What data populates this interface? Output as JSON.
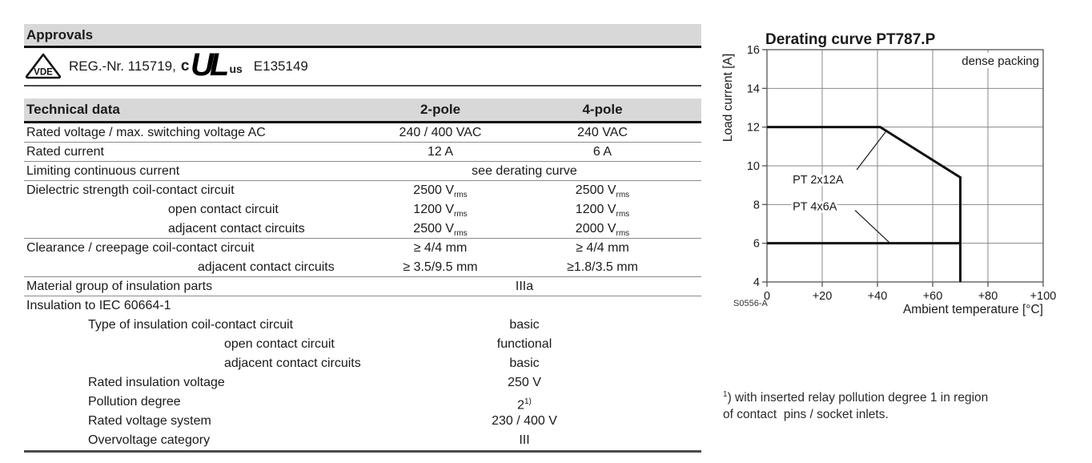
{
  "colors": {
    "bar_gray": "#d8d8d8",
    "text": "#1a1a1a",
    "thin_line": "#8c8c8c",
    "thick_line": "#4a4a4a",
    "grid": "#8a8a8a",
    "curve": "#111111"
  },
  "approvals": {
    "title": "Approvals",
    "vde_label": "VDE",
    "reg_text": "REG.-Nr. 115719,",
    "ul_c": "c",
    "ul_mark": "UL",
    "ul_us": "us",
    "cert_number": "E135149"
  },
  "table": {
    "title": "Technical data",
    "col2_header": "2-pole",
    "col4_header": "4-pole",
    "rows": [
      {
        "label": "Rated voltage / max. switching voltage AC",
        "ind": 0,
        "v2": {
          "t": "240 / 400 VAC"
        },
        "v4": {
          "t": "240 VAC"
        },
        "sep": true
      },
      {
        "label": "Rated current",
        "ind": 0,
        "v2": {
          "t": "12 A"
        },
        "v4": {
          "t": "6 A"
        },
        "sep": true
      },
      {
        "label": "Limiting continuous current",
        "ind": 0,
        "span": {
          "t": "see derating curve"
        },
        "sep": true
      },
      {
        "label": "Dielectric strength coil-contact circuit",
        "ind": 0,
        "v2": {
          "t": "2500 V",
          "sub": "rms"
        },
        "v4": {
          "t": "2500 V",
          "sub": "rms"
        },
        "sep": false
      },
      {
        "label": "open contact circuit",
        "ind": 2,
        "v2": {
          "t": "1200 V",
          "sub": "rms"
        },
        "v4": {
          "t": "1200 V",
          "sub": "rms"
        },
        "sep": false
      },
      {
        "label": "adjacent contact circuits",
        "ind": 2,
        "v2": {
          "t": "2500 V",
          "sub": "rms"
        },
        "v4": {
          "t": "2000 V",
          "sub": "rms"
        },
        "sep": true
      },
      {
        "label": "Clearance / creepage coil-contact circuit",
        "ind": 0,
        "v2": {
          "t": "≥ 4/4 mm"
        },
        "v4": {
          "t": "≥ 4/4 mm"
        },
        "sep": false
      },
      {
        "label": "adjacent contact circuits",
        "ind": 21,
        "v2": {
          "t": "≥ 3.5/9.5 mm"
        },
        "v4": {
          "t": "≥1.8/3.5 mm"
        },
        "sep": true
      },
      {
        "label": "Material group of insulation parts",
        "ind": 0,
        "span": {
          "t": "IIIa"
        },
        "sep": true
      },
      {
        "label": "Insulation to IEC 60664-1",
        "ind": 0,
        "sep": false
      },
      {
        "label": "Type of insulation coil-contact circuit",
        "ind": 1,
        "span": {
          "t": "basic"
        },
        "sep": false
      },
      {
        "label": "open contact circuit",
        "ind": 3,
        "span": {
          "t": "functional"
        },
        "sep": false
      },
      {
        "label": "adjacent contact circuits",
        "ind": 3,
        "span": {
          "t": "basic"
        },
        "sep": false
      },
      {
        "label": "Rated insulation voltage",
        "ind": 1,
        "span": {
          "t": "250 V"
        },
        "sep": false
      },
      {
        "label": "Pollution degree",
        "ind": 1,
        "span": {
          "t": "2",
          "sup": "1)"
        },
        "sep": false
      },
      {
        "label": "Rated voltage system",
        "ind": 1,
        "span": {
          "t": "230 / 400 V"
        },
        "sep": false
      },
      {
        "label": "Overvoltage category",
        "ind": 1,
        "span": {
          "t": "III"
        },
        "sep": false
      }
    ]
  },
  "chart_data": {
    "type": "line",
    "title": "Derating curve PT787.P",
    "xlabel": "Ambient temperature [°C]",
    "ylabel": "Load current [A]",
    "xlim": [
      0,
      100
    ],
    "ylim": [
      4,
      16
    ],
    "x_ticks": {
      "values": [
        0,
        20,
        40,
        60,
        80,
        100
      ],
      "labels": [
        "0",
        "+20",
        "+40",
        "+60",
        "+80",
        "+100"
      ]
    },
    "y_ticks": {
      "values": [
        4,
        6,
        8,
        10,
        12,
        14,
        16
      ],
      "labels": [
        "4",
        "6",
        "8",
        "10",
        "12",
        "14",
        "16"
      ]
    },
    "grid": true,
    "legend_position": "none",
    "corner_note": "dense packing",
    "figure_id": "S0556-A",
    "series": [
      {
        "name": "PT 2x12A",
        "points": [
          [
            0,
            12
          ],
          [
            41,
            12
          ],
          [
            70,
            9.4
          ],
          [
            70,
            4
          ]
        ]
      },
      {
        "name": "PT 4x6A",
        "points": [
          [
            0,
            6
          ],
          [
            70,
            6
          ],
          [
            70,
            4
          ]
        ]
      }
    ],
    "annotations": [
      {
        "text": "PT 2x12A",
        "text_pos": [
          9.3,
          9.1
        ],
        "leader": [
          [
            32.5,
            9.8
          ],
          [
            43.2,
            11.8
          ]
        ]
      },
      {
        "text": "PT 4x6A",
        "text_pos": [
          9.3,
          7.7
        ],
        "leader": [
          [
            31.9,
            7.7
          ],
          [
            44.6,
            6.0
          ]
        ]
      }
    ]
  },
  "footnote": {
    "sup": "1",
    "line1": ") with inserted relay pollution degree 1 in region",
    "line2": "of contact  pins / socket inlets."
  }
}
